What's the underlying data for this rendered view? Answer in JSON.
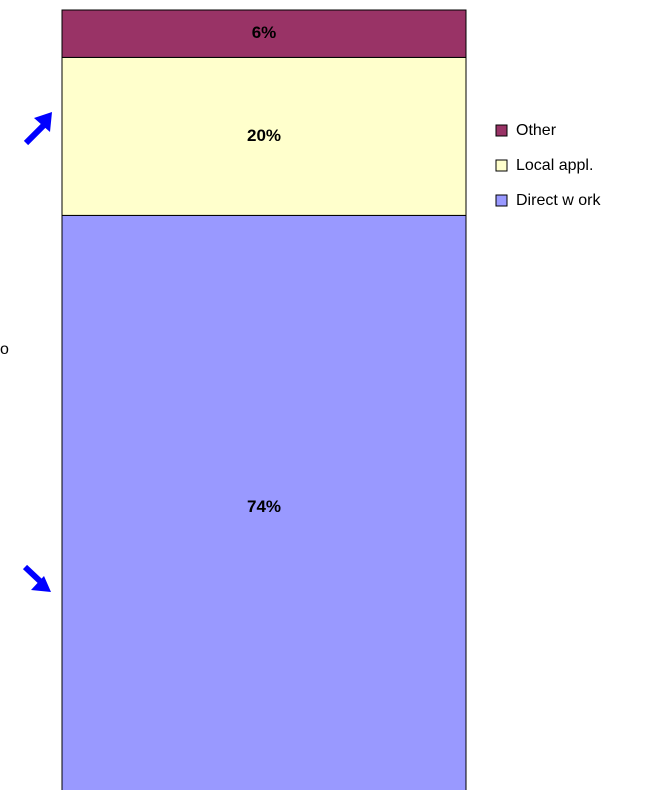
{
  "chart_data": {
    "type": "stacked_bar",
    "annotation": "o",
    "ylim": [
      0,
      100
    ],
    "series": [
      {
        "name": "Direct w ork",
        "color": "#9999ff",
        "values": [
          74
        ],
        "value_labels": [
          "74%"
        ]
      },
      {
        "name": "Local appl.",
        "color": "#ffffcc",
        "values": [
          20
        ],
        "value_labels": [
          "20%"
        ]
      },
      {
        "name": "Other",
        "color": "#993366",
        "values": [
          6
        ],
        "value_labels": [
          "6%"
        ]
      }
    ],
    "legend": "right"
  }
}
